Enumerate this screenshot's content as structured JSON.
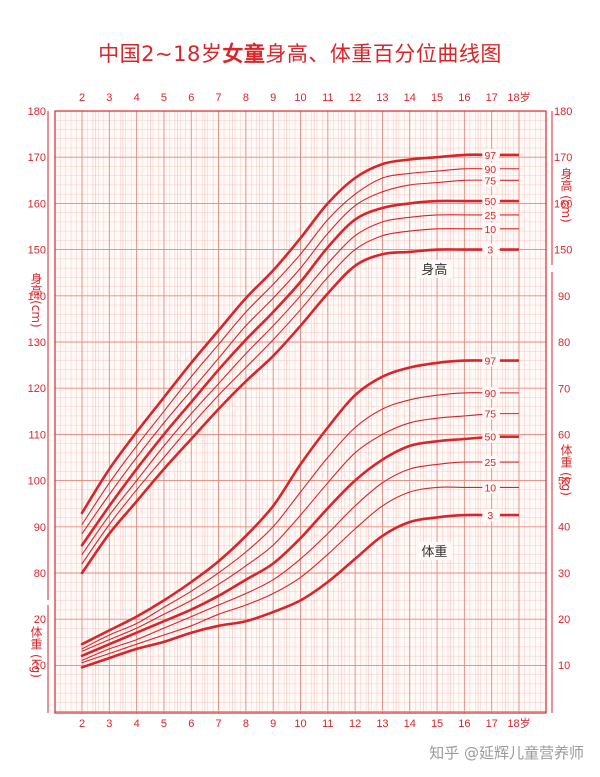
{
  "title_pre": "中国2~18岁",
  "title_bold": "女童",
  "title_post": "身高、体重百分位曲线图",
  "watermark": "知乎 @延辉儿童营养师",
  "colors": {
    "accent": "#d9252a",
    "grid_minor": "#f6c9c3",
    "grid_major": "#e58a7e"
  },
  "chart_data": {
    "type": "line",
    "x_ticks": [
      "2",
      "3",
      "4",
      "5",
      "6",
      "7",
      "8",
      "9",
      "10",
      "11",
      "12",
      "13",
      "14",
      "15",
      "16",
      "17",
      "18岁"
    ],
    "xlim": [
      2,
      18
    ],
    "height_axis": {
      "label": "身高 (cm)",
      "ylim": [
        75,
        180
      ],
      "ticks": [
        80,
        90,
        100,
        110,
        120,
        130,
        140,
        150,
        160,
        170,
        180
      ]
    },
    "weight_axis_left": {
      "label": "体重 (kg)",
      "ticks": [
        10,
        20
      ]
    },
    "weight_axis_right": {
      "label": "体重 (kg)",
      "ylim": [
        2,
        90
      ],
      "ticks": [
        10,
        20,
        30,
        40,
        50,
        60,
        70,
        80,
        90
      ]
    },
    "height_right_axis": {
      "label": "身高 (cm)",
      "ticks": [
        150,
        160,
        170,
        180
      ]
    },
    "height_group_label": "身高",
    "weight_group_label": "体重",
    "x": [
      2,
      3,
      4,
      5,
      6,
      7,
      8,
      9,
      10,
      11,
      12,
      13,
      14,
      15,
      16,
      17
    ],
    "height_series": [
      {
        "name": "97",
        "bold": true,
        "values": [
          93.0,
          102.5,
          110.5,
          118.0,
          125.5,
          132.5,
          139.5,
          145.5,
          152.5,
          160.0,
          165.5,
          168.5,
          169.5,
          170.0,
          170.5,
          170.5
        ]
      },
      {
        "name": "90",
        "bold": false,
        "values": [
          90.5,
          99.5,
          107.5,
          115.0,
          122.5,
          129.5,
          136.5,
          142.5,
          149.0,
          156.5,
          162.0,
          165.5,
          166.5,
          167.0,
          167.5,
          167.5
        ]
      },
      {
        "name": "75",
        "bold": false,
        "values": [
          88.5,
          97.0,
          105.0,
          112.5,
          119.5,
          126.5,
          133.5,
          139.5,
          146.0,
          153.5,
          159.5,
          162.5,
          164.0,
          164.5,
          165.0,
          165.0
        ]
      },
      {
        "name": "50",
        "bold": true,
        "values": [
          86.0,
          94.5,
          102.5,
          110.0,
          117.0,
          124.0,
          130.5,
          136.5,
          143.0,
          150.5,
          156.5,
          159.0,
          160.0,
          160.5,
          160.5,
          160.5
        ]
      },
      {
        "name": "25",
        "bold": false,
        "values": [
          84.0,
          92.5,
          100.0,
          107.5,
          114.5,
          121.0,
          127.5,
          133.5,
          140.0,
          147.0,
          153.0,
          156.0,
          157.0,
          157.5,
          157.5,
          157.5
        ]
      },
      {
        "name": "10",
        "bold": false,
        "values": [
          82.0,
          90.5,
          98.0,
          105.0,
          112.0,
          118.5,
          124.5,
          130.5,
          137.0,
          144.0,
          150.0,
          153.0,
          154.0,
          154.5,
          154.5,
          154.5
        ]
      },
      {
        "name": "3",
        "bold": true,
        "values": [
          80.0,
          88.5,
          95.5,
          102.5,
          109.0,
          115.5,
          121.5,
          127.0,
          133.5,
          140.5,
          146.5,
          149.0,
          149.5,
          150.0,
          150.0,
          150.0
        ]
      }
    ],
    "weight_series": [
      {
        "name": "97",
        "bold": true,
        "values": [
          14.5,
          17.5,
          20.5,
          24.0,
          28.0,
          32.5,
          38.0,
          44.5,
          53.5,
          61.5,
          68.5,
          72.5,
          74.5,
          75.5,
          76.0,
          76.0
        ]
      },
      {
        "name": "90",
        "bold": false,
        "values": [
          13.5,
          16.5,
          19.0,
          22.5,
          26.0,
          30.0,
          34.5,
          40.0,
          47.5,
          55.0,
          61.5,
          65.5,
          67.5,
          68.5,
          69.0,
          69.0
        ]
      },
      {
        "name": "75",
        "bold": false,
        "values": [
          13.0,
          15.5,
          18.0,
          21.0,
          24.0,
          27.5,
          31.5,
          36.0,
          42.5,
          49.5,
          56.0,
          60.0,
          62.5,
          63.5,
          64.0,
          64.5
        ]
      },
      {
        "name": "50",
        "bold": true,
        "values": [
          12.0,
          14.5,
          17.0,
          19.5,
          22.0,
          25.0,
          28.5,
          32.0,
          37.5,
          44.0,
          50.0,
          54.5,
          57.5,
          58.5,
          59.0,
          59.5
        ]
      },
      {
        "name": "25",
        "bold": false,
        "values": [
          11.0,
          13.5,
          15.5,
          18.0,
          20.5,
          23.0,
          25.5,
          28.5,
          33.0,
          38.5,
          44.5,
          49.5,
          52.5,
          53.5,
          54.0,
          54.0
        ]
      },
      {
        "name": "10",
        "bold": false,
        "values": [
          10.5,
          12.5,
          14.5,
          16.5,
          18.5,
          21.0,
          23.0,
          25.5,
          29.0,
          34.0,
          39.5,
          44.5,
          47.5,
          48.5,
          48.5,
          48.5
        ]
      },
      {
        "name": "3",
        "bold": true,
        "values": [
          9.5,
          11.5,
          13.5,
          15.0,
          17.0,
          18.5,
          19.5,
          21.5,
          24.0,
          28.0,
          33.0,
          38.0,
          41.0,
          42.0,
          42.5,
          42.5
        ]
      }
    ]
  }
}
